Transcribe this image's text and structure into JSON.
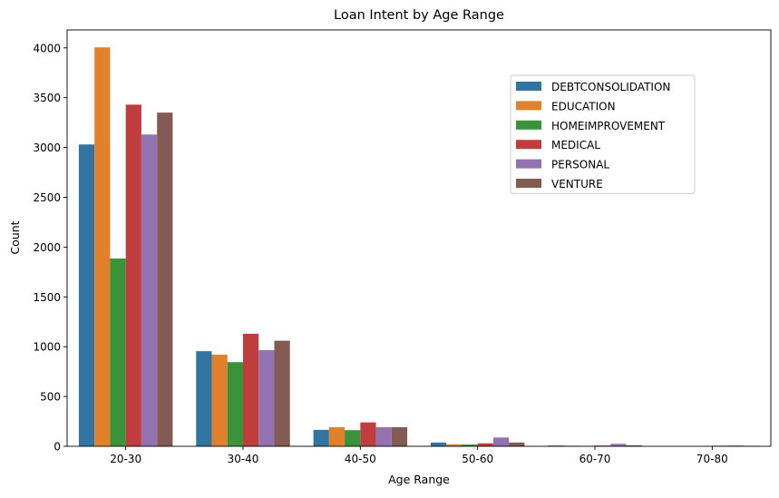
{
  "chart_data": {
    "type": "bar",
    "title": "Loan Intent by Age Range",
    "xlabel": "Age Range",
    "ylabel": "Count",
    "ylim": [
      0,
      4180
    ],
    "yticks": [
      0,
      500,
      1000,
      1500,
      2000,
      2500,
      3000,
      3500,
      4000
    ],
    "categories": [
      "20-30",
      "30-40",
      "40-50",
      "50-60",
      "60-70",
      "70-80"
    ],
    "legend_position": "upper-right",
    "grid": false,
    "series": [
      {
        "name": "DEBTCONSOLIDATION",
        "color": "#3274a1",
        "values": [
          3030,
          955,
          165,
          38,
          8,
          1
        ]
      },
      {
        "name": "EDUCATION",
        "color": "#e1812c",
        "values": [
          4005,
          920,
          192,
          20,
          6,
          1
        ]
      },
      {
        "name": "HOMEIMPROVEMENT",
        "color": "#3a923a",
        "values": [
          1885,
          845,
          162,
          18,
          4,
          1
        ]
      },
      {
        "name": "MEDICAL",
        "color": "#c03d3e",
        "values": [
          3430,
          1130,
          240,
          30,
          8,
          6
        ]
      },
      {
        "name": "PERSONAL",
        "color": "#9372b2",
        "values": [
          3130,
          965,
          192,
          88,
          25,
          8
        ]
      },
      {
        "name": "VENTURE",
        "color": "#845b53",
        "values": [
          3350,
          1060,
          192,
          38,
          10,
          5
        ]
      }
    ]
  }
}
